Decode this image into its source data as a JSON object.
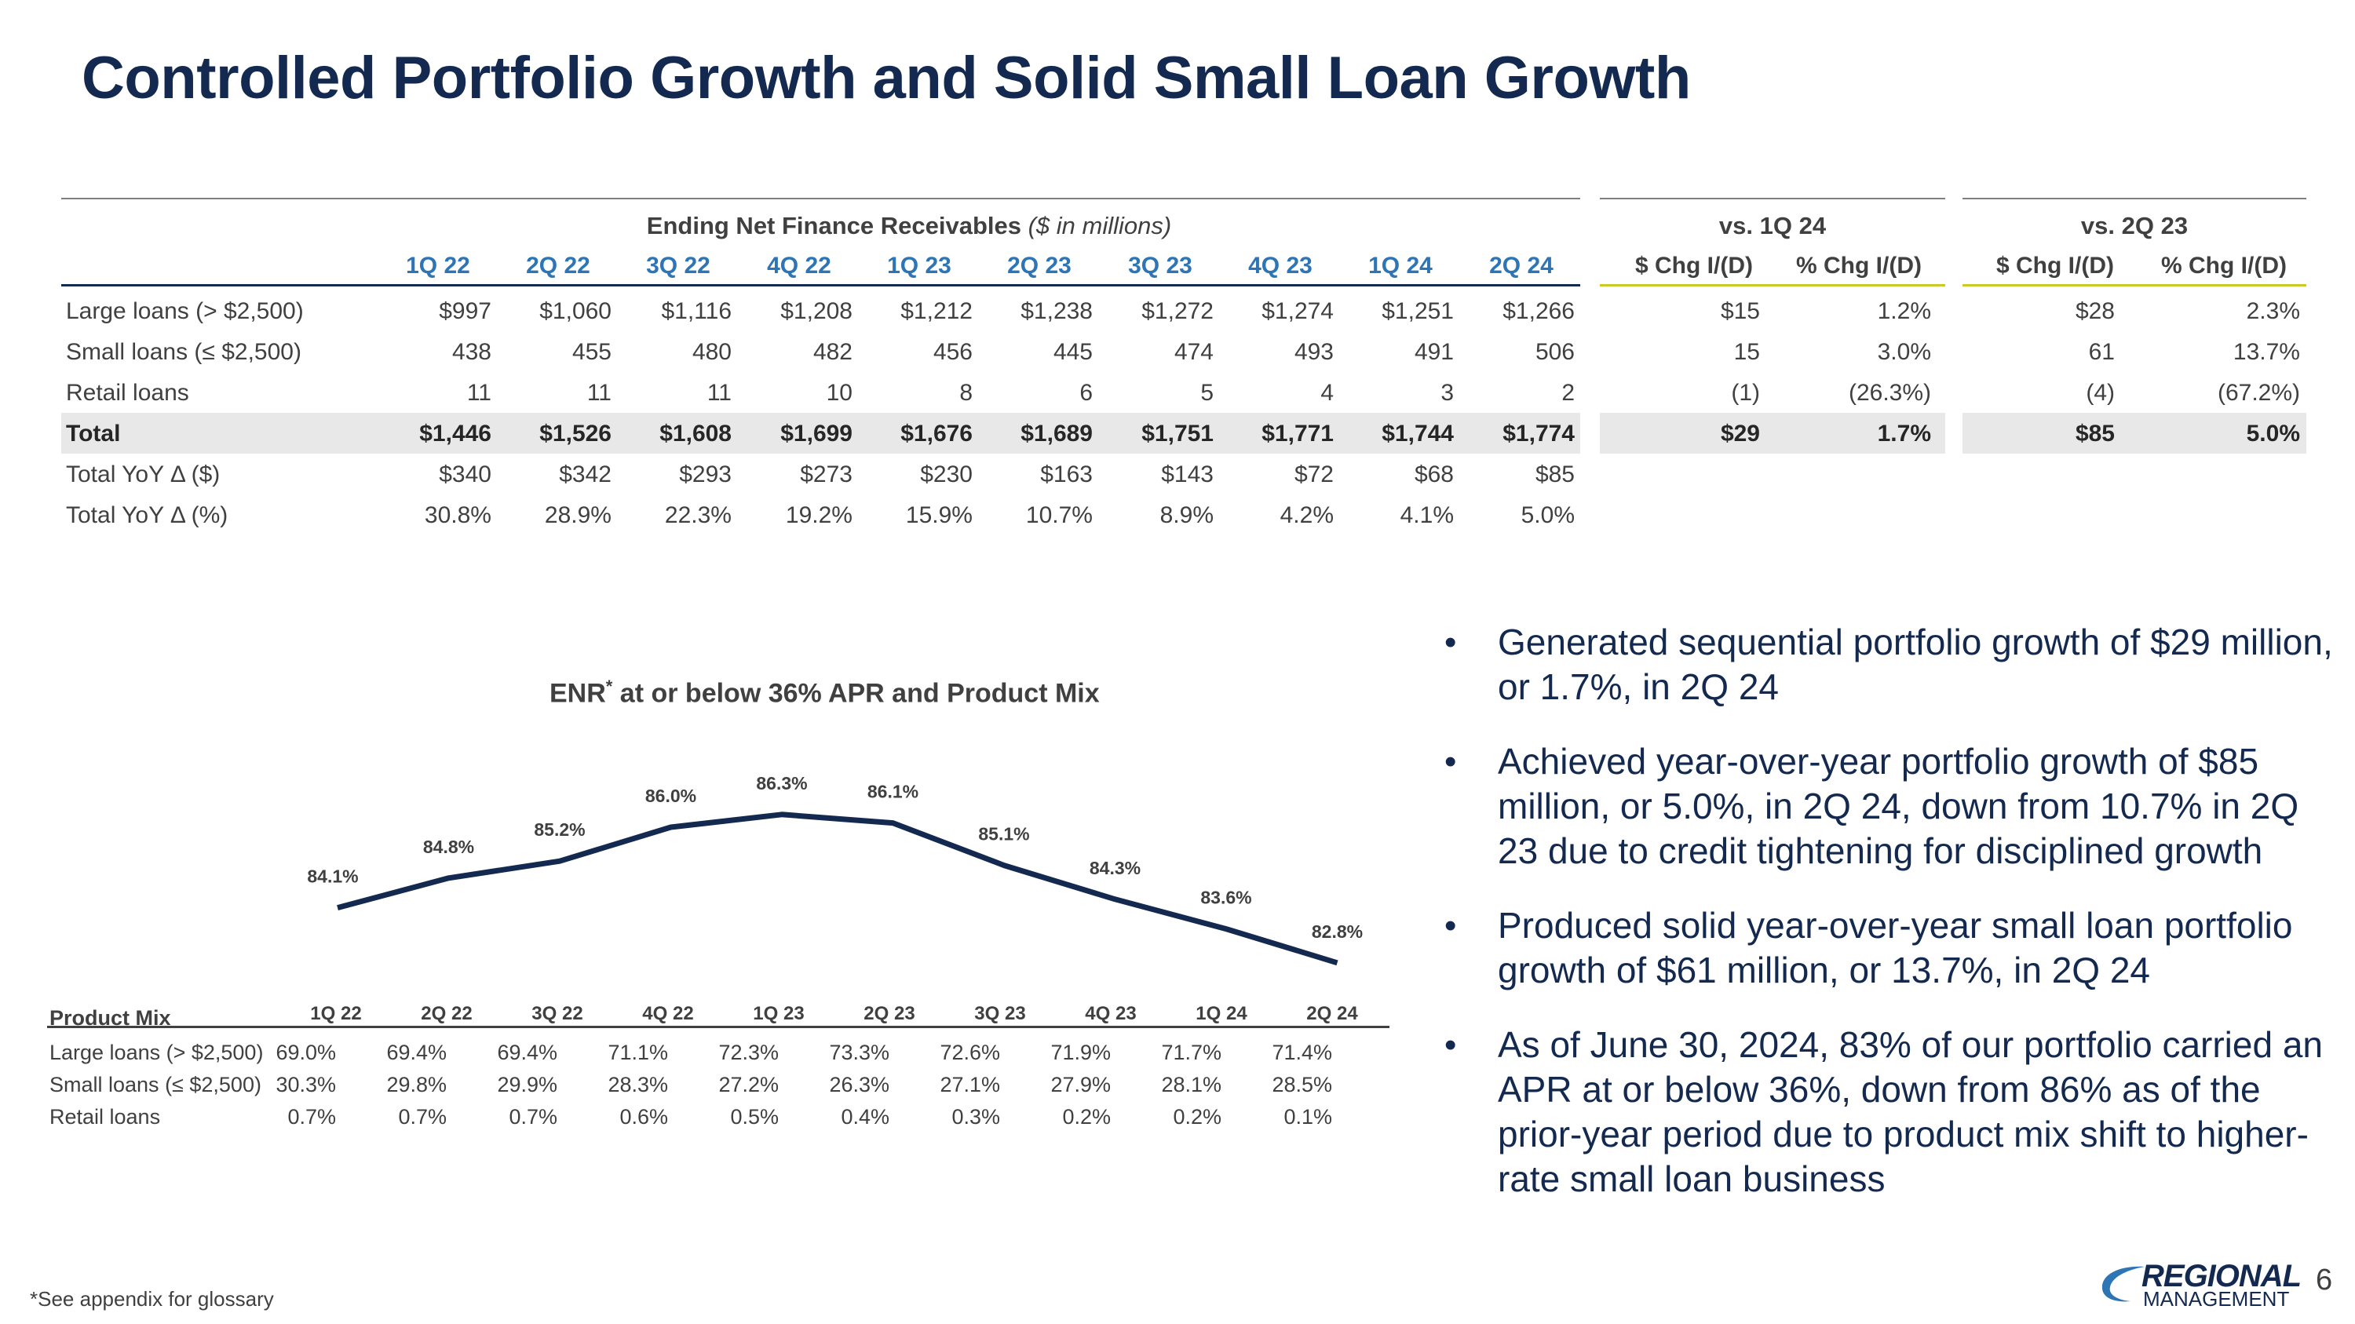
{
  "title": "Controlled Portfolio Growth and Solid Small Loan Growth",
  "enr_table": {
    "heading": "Ending Net Finance Receivables",
    "heading_unit": "($ in millions)",
    "vs_1q24": "vs. 1Q 24",
    "vs_2q23": "vs. 2Q 23",
    "quarters": [
      "1Q 22",
      "2Q 22",
      "3Q 22",
      "4Q 22",
      "1Q 23",
      "2Q 23",
      "3Q 23",
      "4Q 23",
      "1Q 24",
      "2Q 24"
    ],
    "chg_headers": [
      "$ Chg I/(D)",
      "% Chg I/(D)",
      "$ Chg I/(D)",
      "% Chg I/(D)"
    ],
    "rows": [
      {
        "label": "Large loans (> $2,500)",
        "values": [
          "$997",
          "$1,060",
          "$1,116",
          "$1,208",
          "$1,212",
          "$1,238",
          "$1,272",
          "$1,274",
          "$1,251",
          "$1,266"
        ],
        "chg": [
          "$15",
          "1.2%",
          "$28",
          "2.3%"
        ]
      },
      {
        "label": "Small loans (≤ $2,500)",
        "values": [
          "438",
          "455",
          "480",
          "482",
          "456",
          "445",
          "474",
          "493",
          "491",
          "506"
        ],
        "chg": [
          "15",
          "3.0%",
          "61",
          "13.7%"
        ]
      },
      {
        "label": "Retail loans",
        "values": [
          "11",
          "11",
          "11",
          "10",
          "8",
          "6",
          "5",
          "4",
          "3",
          "2"
        ],
        "chg": [
          "(1)",
          "(26.3%)",
          "(4)",
          "(67.2%)"
        ]
      },
      {
        "label": "Total",
        "values": [
          "$1,446",
          "$1,526",
          "$1,608",
          "$1,699",
          "$1,676",
          "$1,689",
          "$1,751",
          "$1,771",
          "$1,744",
          "$1,774"
        ],
        "chg": [
          "$29",
          "1.7%",
          "$85",
          "5.0%"
        ]
      },
      {
        "label": "Total YoY Δ ($)",
        "values": [
          "$340",
          "$342",
          "$293",
          "$273",
          "$230",
          "$163",
          "$143",
          "$72",
          "$68",
          "$85"
        ],
        "chg": []
      },
      {
        "label": "Total YoY Δ (%)",
        "values": [
          "30.8%",
          "28.9%",
          "22.3%",
          "19.2%",
          "15.9%",
          "10.7%",
          "8.9%",
          "4.2%",
          "4.1%",
          "5.0%"
        ],
        "chg": []
      }
    ]
  },
  "chart": {
    "title_main": "ENR",
    "title_sup": "*",
    "title_rest": " at or below 36% APR and Product Mix"
  },
  "chart_data": {
    "type": "line",
    "title": "ENR* at or below 36% APR and Product Mix",
    "categories": [
      "1Q 22",
      "2Q 22",
      "3Q 22",
      "4Q 22",
      "1Q 23",
      "2Q 23",
      "3Q 23",
      "4Q 23",
      "1Q 24",
      "2Q 24"
    ],
    "series": [
      {
        "name": "ENR at or below 36% APR",
        "values": [
          84.1,
          84.8,
          85.2,
          86.0,
          86.3,
          86.1,
          85.1,
          84.3,
          83.6,
          82.8
        ]
      }
    ],
    "labels": [
      "84.1%",
      "84.8%",
      "85.2%",
      "86.0%",
      "86.3%",
      "86.1%",
      "85.1%",
      "84.3%",
      "83.6%",
      "82.8%"
    ],
    "ylim": [
      82.0,
      87.0
    ],
    "color": "#14294f"
  },
  "product_mix": {
    "label": "Product Mix",
    "quarters": [
      "1Q 22",
      "2Q 22",
      "3Q 22",
      "4Q 22",
      "1Q 23",
      "2Q 23",
      "3Q 23",
      "4Q 23",
      "1Q 24",
      "2Q 24"
    ],
    "rows": [
      {
        "label": "Large loans (> $2,500)",
        "values": [
          "69.0%",
          "69.4%",
          "69.4%",
          "71.1%",
          "72.3%",
          "73.3%",
          "72.6%",
          "71.9%",
          "71.7%",
          "71.4%"
        ]
      },
      {
        "label": "Small loans (≤ $2,500)",
        "values": [
          "30.3%",
          "29.8%",
          "29.9%",
          "28.3%",
          "27.2%",
          "26.3%",
          "27.1%",
          "27.9%",
          "28.1%",
          "28.5%"
        ]
      },
      {
        "label": "Retail loans",
        "values": [
          "0.7%",
          "0.7%",
          "0.7%",
          "0.6%",
          "0.5%",
          "0.4%",
          "0.3%",
          "0.2%",
          "0.2%",
          "0.1%"
        ]
      }
    ]
  },
  "bullets": [
    "Generated sequential portfolio growth of $29 million, or 1.7%, in 2Q 24",
    "Achieved year-over-year portfolio growth of $85 million, or 5.0%, in 2Q 24, down from 10.7% in 2Q 23 due to credit tightening for disciplined growth",
    "Produced solid year-over-year small loan portfolio growth of $61 million, or 13.7%, in 2Q 24",
    "As of June 30, 2024, 83% of our portfolio carried an APR at or below 36%, down from 86% as of the prior-year period due to product mix shift to higher-rate small loan business"
  ],
  "footnote": "*See appendix for glossary",
  "logo": {
    "line1": "REGIONAL",
    "line2": "MANAGEMENT"
  },
  "page_number": "6"
}
